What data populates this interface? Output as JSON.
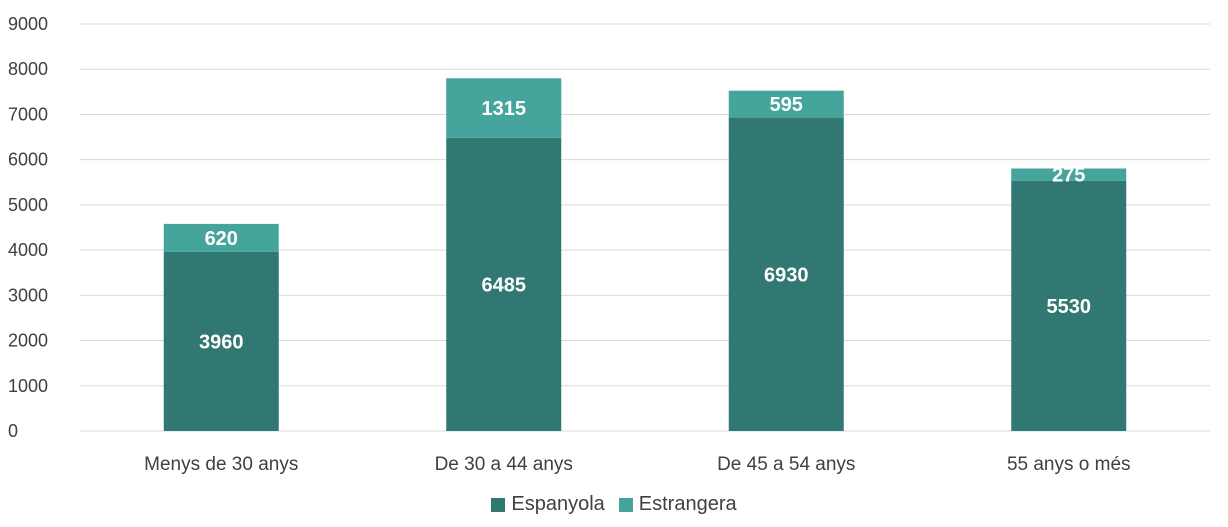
{
  "chart_data": {
    "type": "bar",
    "stacked": true,
    "categories": [
      "Menys de 30 anys",
      "De 30 a 44 anys",
      "De 45 a 54 anys",
      "55 anys o més"
    ],
    "series": [
      {
        "name": "Espanyola",
        "values": [
          3960,
          6485,
          6930,
          5530
        ],
        "color": "#317873"
      },
      {
        "name": "Estrangera",
        "values": [
          620,
          1315,
          595,
          275
        ],
        "color": "#45A59C"
      }
    ],
    "yticks": [
      "0",
      "1000",
      "2000",
      "3000",
      "4000",
      "5000",
      "6000",
      "7000",
      "8000",
      "9000"
    ],
    "ylim": [
      0,
      9000
    ],
    "grid": true,
    "legend_position": "bottom"
  }
}
